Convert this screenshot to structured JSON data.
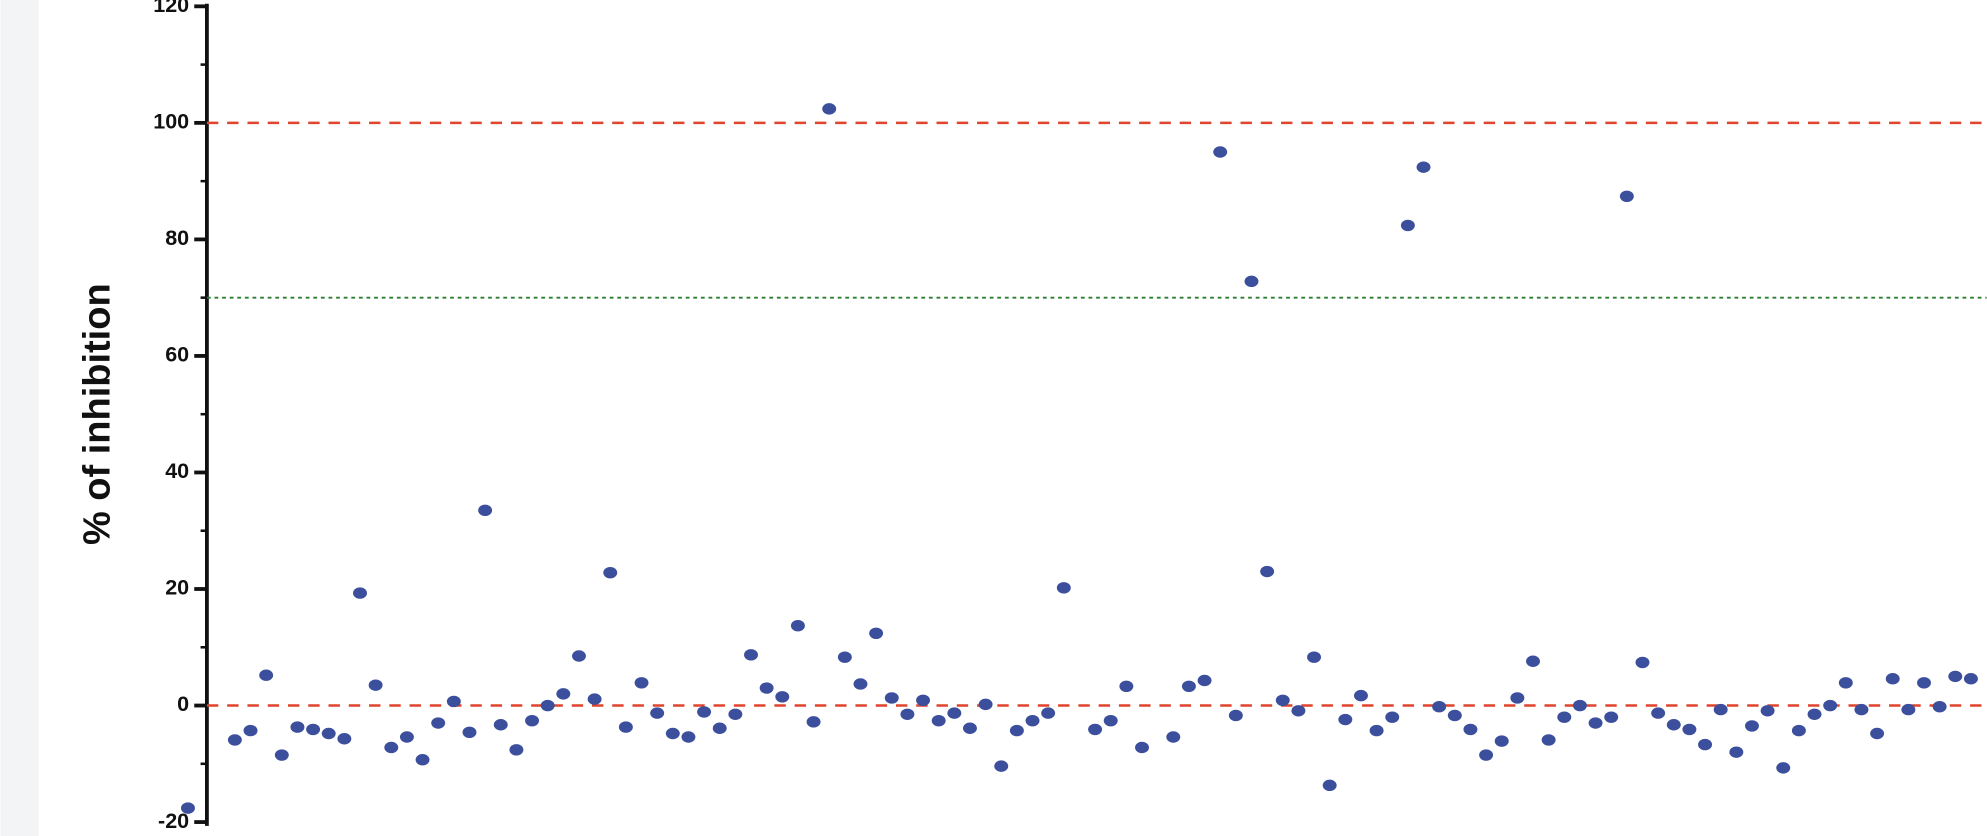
{
  "chart_data": {
    "type": "scatter",
    "y_label": "% of inhibition",
    "ylim": [
      -20,
      120
    ],
    "yticks": [
      -20,
      0,
      20,
      40,
      60,
      80,
      100,
      120
    ],
    "yminorticks": [
      -10,
      10,
      30,
      50,
      70,
      90,
      110
    ],
    "xlim": [
      0,
      116
    ],
    "color": "#3b4f9c",
    "reference_lines": [
      {
        "value": 100,
        "color": "#e0442f",
        "style": "dashed"
      },
      {
        "value": 70,
        "color": "#2e7d32",
        "style": "dotted"
      },
      {
        "value": 0,
        "color": "#e0442f",
        "style": "dashed"
      }
    ],
    "x": [
      1,
      4,
      5,
      6,
      7,
      8,
      9,
      10,
      11,
      12,
      13,
      14,
      15,
      16,
      17,
      18,
      19,
      20,
      21,
      22,
      23,
      24,
      25,
      26,
      27,
      28,
      29,
      30,
      31,
      32,
      33,
      34,
      35,
      36,
      37,
      38,
      39,
      40,
      41,
      42,
      43,
      44,
      45,
      46,
      47,
      48,
      49,
      50,
      51,
      52,
      53,
      54,
      55,
      56,
      57,
      59,
      60,
      61,
      62,
      64,
      65,
      66,
      67,
      68,
      69,
      70,
      71,
      72,
      73,
      74,
      75,
      76,
      77,
      78,
      79,
      80,
      81,
      82,
      83,
      84,
      85,
      86,
      87,
      88,
      89,
      90,
      91,
      92,
      93,
      94,
      95,
      96,
      97,
      98,
      99,
      100,
      101,
      102,
      103,
      104,
      105,
      106,
      107,
      108,
      109,
      110,
      111,
      112,
      113,
      114,
      115
    ],
    "values": [
      -17.6,
      -5.9,
      -4.3,
      5.2,
      -8.5,
      -3.7,
      -4.1,
      -4.8,
      -5.7,
      19.3,
      3.5,
      -7.2,
      -5.4,
      -9.3,
      -3.0,
      0.7,
      -4.6,
      33.5,
      -3.3,
      -7.6,
      -2.6,
      0,
      2.0,
      8.5,
      1.1,
      22.8,
      -3.7,
      3.9,
      -1.3,
      -4.8,
      -5.4,
      -1.1,
      -3.9,
      -1.5,
      8.7,
      3.0,
      1.5,
      13.7,
      -2.8,
      102.4,
      8.3,
      3.7,
      12.4,
      1.3,
      -1.5,
      0.9,
      -2.6,
      -1.3,
      -3.9,
      0.2,
      -10.4,
      -4.3,
      -2.6,
      -1.3,
      20.2,
      -4.1,
      -2.6,
      3.3,
      -7.2,
      -5.4,
      3.3,
      4.3,
      95,
      -1.7,
      72.8,
      23,
      0.9,
      -0.9,
      8.3,
      -13.7,
      -2.4,
      1.7,
      -4.3,
      -2.0,
      82.4,
      92.4,
      -0.2,
      -1.7,
      -4.1,
      -8.5,
      -6.1,
      1.3,
      7.6,
      -5.9,
      -2.0,
      0,
      -3.0,
      -2.0,
      87.4,
      7.4,
      -1.3,
      -3.3,
      -4.1,
      -6.7,
      -0.7,
      -8.0,
      -3.5,
      -0.9,
      -10.7,
      -4.3,
      -1.5,
      0,
      3.9,
      -0.7,
      -4.8,
      4.6,
      -0.7,
      3.9,
      -0.2,
      5,
      4.6
    ]
  }
}
